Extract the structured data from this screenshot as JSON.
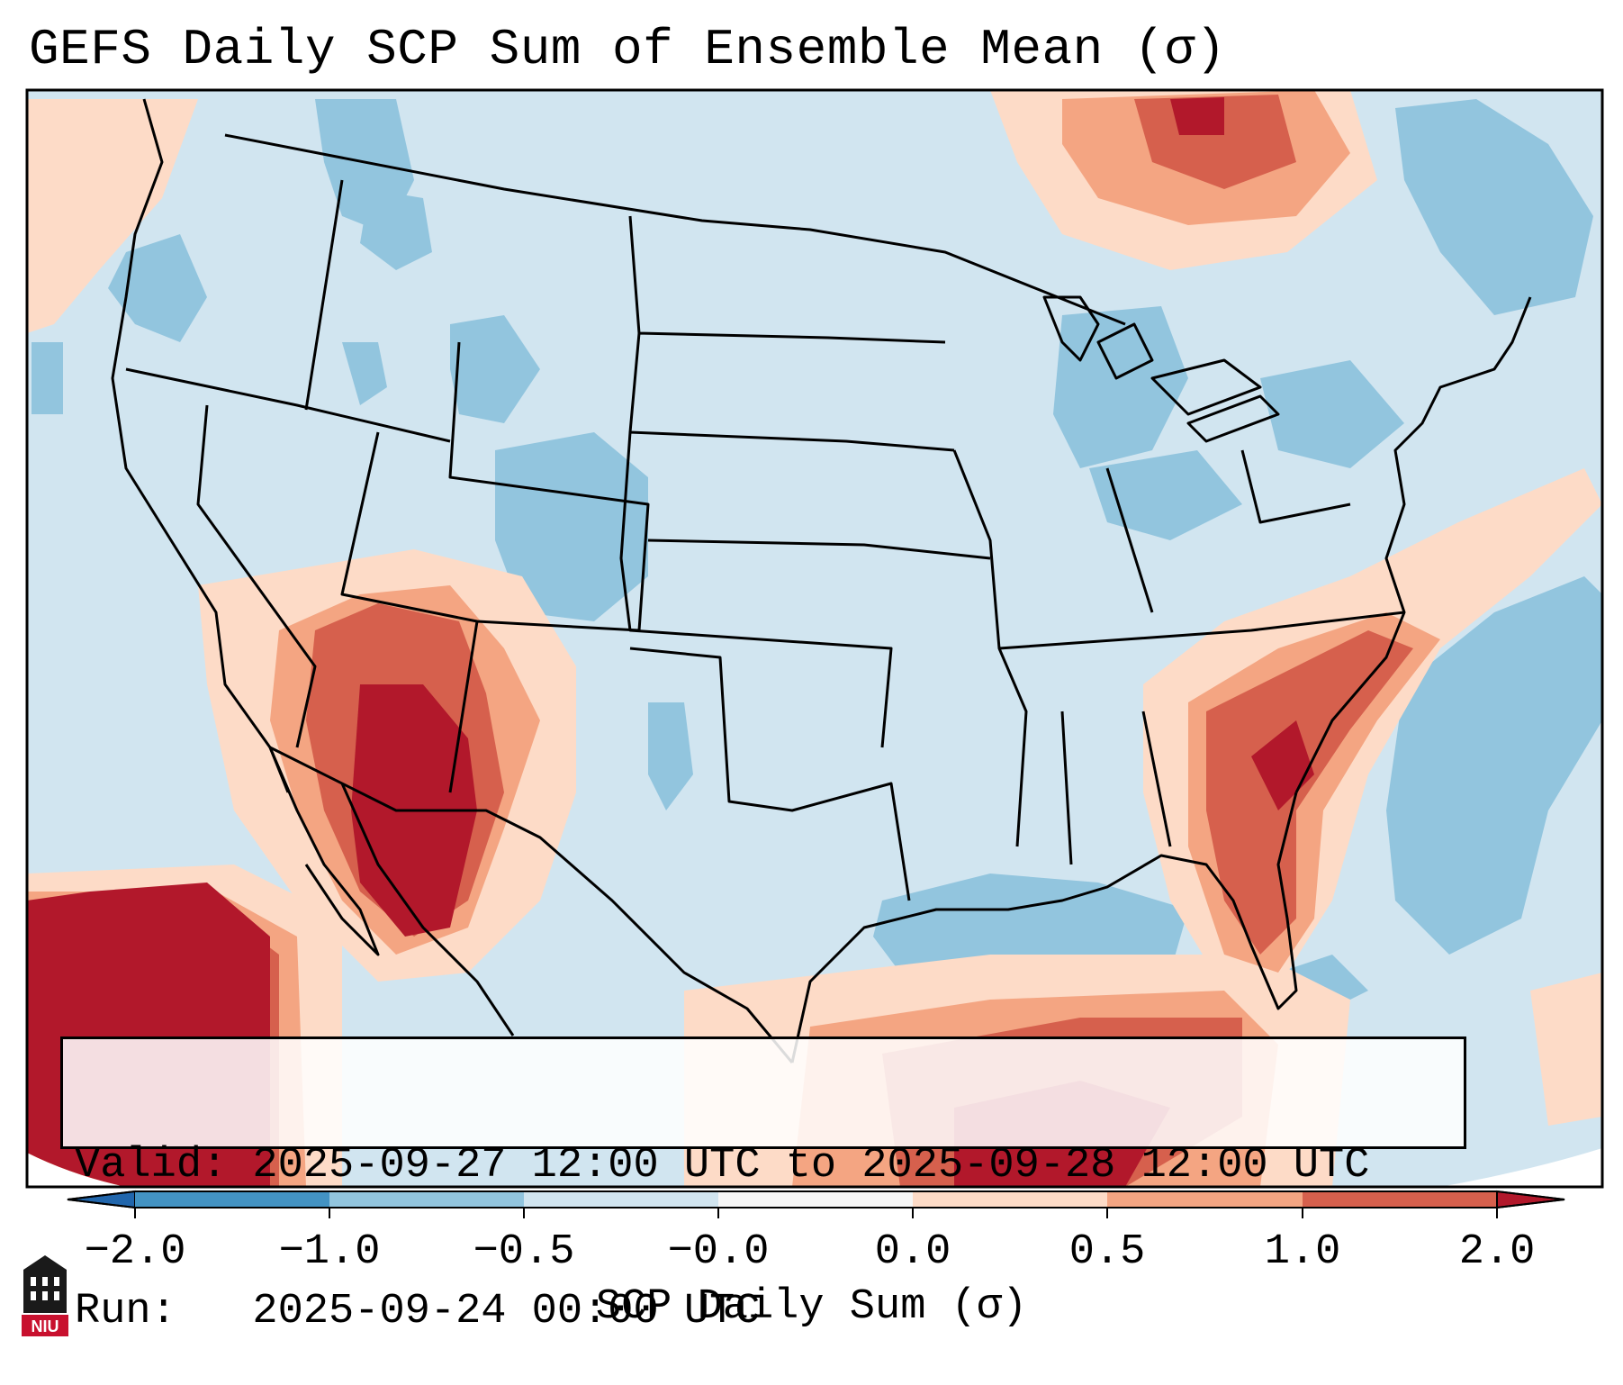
{
  "title": "GEFS Daily SCP Sum of Ensemble Mean (σ)",
  "info": {
    "valid_line": "Valid: 2025-09-27 12:00 UTC to 2025-09-28 12:00 UTC",
    "run_line": "Run:   2025-09-24 00:00 UTC"
  },
  "colorbar": {
    "label": "SCP Daily Sum (σ)",
    "tick_labels": [
      "−2.0",
      "−1.0",
      "−0.5",
      "−0.0",
      "0.0",
      "0.5",
      "1.0",
      "2.0"
    ],
    "bins": [
      {
        "from": "<-2.0",
        "color": "#2166ac"
      },
      {
        "from": "-2.0",
        "to": "-1.0",
        "color": "#4393c3"
      },
      {
        "from": "-1.0",
        "to": "-0.5",
        "color": "#92c5de"
      },
      {
        "from": "-0.5",
        "to": "-0.0",
        "color": "#d1e5f0"
      },
      {
        "from": "-0.0",
        "to": "0.0",
        "color": "#f7f7f7"
      },
      {
        "from": "0.0",
        "to": "0.5",
        "color": "#fddbc7"
      },
      {
        "from": "0.5",
        "to": "1.0",
        "color": "#f4a582"
      },
      {
        "from": "1.0",
        "to": "2.0",
        "color": "#d6604d"
      },
      {
        "from": ">2.0",
        "color": "#b2182b"
      }
    ]
  },
  "map": {
    "background_color": "#d1e5f0",
    "outside_color": "#ffffff",
    "high_anomaly_color": "#b2182b",
    "moderate_anomaly_color": "#d6604d",
    "low_anomaly_color": "#f4a582",
    "slight_anomaly_color": "#fddbc7",
    "negative_anomaly_color": "#92c5de"
  },
  "logo": {
    "text": "NIU",
    "color": "#c8102e"
  }
}
